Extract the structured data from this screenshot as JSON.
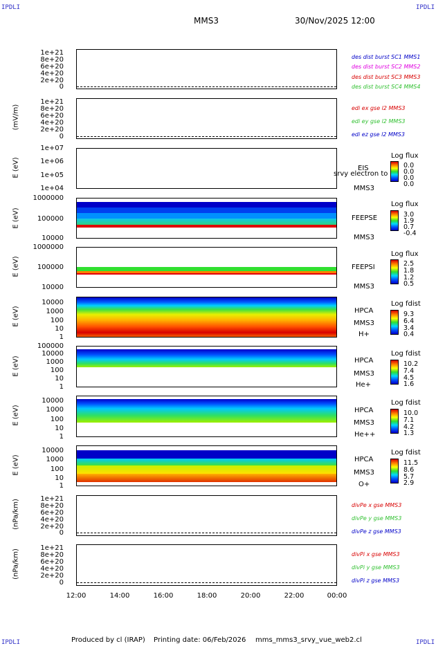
{
  "header": {
    "corner_label": "IPDLI",
    "mission": "MMS3",
    "datetime": "30/Nov/2025 12:00"
  },
  "footer": {
    "produced": "Produced by cl (IRAP)",
    "printing": "Printing date: 06/Feb/2026",
    "file": "mms_mms3_srvy_vue_web2.cl"
  },
  "colors": {
    "dark_blue": "#0000c8",
    "blue": "#0050ff",
    "cyan": "#00d8ff",
    "green": "#30e030",
    "yellow": "#ffff00",
    "orange": "#ff9000",
    "red": "#d80000"
  },
  "chart_data": {
    "type": "multi-panel time series / spectrogram",
    "x_range": [
      "12:00",
      "00:00"
    ],
    "x_ticks": [
      "12:00",
      "14:00",
      "16:00",
      "18:00",
      "20:00",
      "22:00",
      "00:00"
    ],
    "panels": [
      {
        "id": "des",
        "type": "line",
        "ylabel": "",
        "ylim": [
          0,
          1.1e+21
        ],
        "yticks": [
          "1e+21",
          "8e+20",
          "6e+20",
          "4e+20",
          "2e+20",
          "0"
        ],
        "legend": [
          {
            "label": "des dist burst SC1 MMS1",
            "color": "#0000c8"
          },
          {
            "label": "des dist burst SC2 MMS2",
            "color": "#e000e0"
          },
          {
            "label": "des dist burst SC3 MMS3",
            "color": "#d80000"
          },
          {
            "label": "des dist burst SC4 MMS4",
            "color": "#30c030"
          }
        ]
      },
      {
        "id": "edi",
        "type": "line",
        "ylabel": "(mV/m)",
        "ylim": [
          0,
          1.1e+21
        ],
        "yticks": [
          "1e+21",
          "8e+20",
          "6e+20",
          "4e+20",
          "2e+20",
          "0"
        ],
        "legend": [
          {
            "label": "edi ex gse l2 MMS3",
            "color": "#d80000"
          },
          {
            "label": "edi ey gse l2 MMS3",
            "color": "#30c030"
          },
          {
            "label": "edi ez gse l2 MMS3",
            "color": "#0000c8"
          }
        ]
      },
      {
        "id": "eis",
        "type": "heatmap",
        "ylabel": "E (eV)",
        "ylim": [
          10000.0,
          10000000.0
        ],
        "yticks": [
          "1e+07",
          "1e+06",
          "1e+05",
          "1e+04"
        ],
        "side_labels": [
          "EIS",
          "srvy electron to",
          "MMS3"
        ],
        "colorbar": {
          "title": "Log flux",
          "values": [
            "0.0",
            "0.0",
            "0.0",
            "0.0"
          ]
        }
      },
      {
        "id": "feepse",
        "type": "heatmap",
        "ylabel": "E (eV)",
        "ylim": [
          10000.0,
          1000000.0
        ],
        "yticks": [
          "1000000",
          "100000",
          "10000"
        ],
        "side_labels": [
          "FEEPSE",
          "MMS3"
        ],
        "colorbar": {
          "title": "Log flux",
          "values": [
            "3.0",
            "1.9",
            "0.7",
            "-0.4"
          ]
        }
      },
      {
        "id": "feepsi",
        "type": "heatmap",
        "ylabel": "E (eV)",
        "ylim": [
          10000.0,
          1000000.0
        ],
        "yticks": [
          "1000000",
          "100000",
          "10000"
        ],
        "side_labels": [
          "FEEPSI",
          "MMS3"
        ],
        "colorbar": {
          "title": "Log flux",
          "values": [
            "2.5",
            "1.8",
            "1.2",
            "0.5"
          ]
        }
      },
      {
        "id": "hpca_h",
        "type": "heatmap",
        "ylabel": "E (eV)",
        "ylim": [
          1,
          40000.0
        ],
        "yticks": [
          "10000",
          "1000",
          "100",
          "10",
          "1"
        ],
        "side_labels": [
          "HPCA",
          "MMS3",
          "H+"
        ],
        "colorbar": {
          "title": "Log fdist",
          "values": [
            "9.3",
            "6.4",
            "3.4",
            "0.4"
          ]
        }
      },
      {
        "id": "hpca_he",
        "type": "heatmap",
        "ylabel": "E (eV)",
        "ylim": [
          1,
          100000.0
        ],
        "yticks": [
          "100000",
          "10000",
          "1000",
          "100",
          "10",
          "1"
        ],
        "side_labels": [
          "HPCA",
          "MMS3",
          "He+"
        ],
        "colorbar": {
          "title": "Log fdist",
          "values": [
            "10.2",
            "7.4",
            "4.5",
            "1.6"
          ]
        }
      },
      {
        "id": "hpca_hepp",
        "type": "heatmap",
        "ylabel": "E (eV)",
        "ylim": [
          1,
          40000.0
        ],
        "yticks": [
          "10000",
          "1000",
          "100",
          "10",
          "1"
        ],
        "side_labels": [
          "HPCA",
          "MMS3",
          "He++"
        ],
        "colorbar": {
          "title": "Log fdist",
          "values": [
            "10.0",
            "7.1",
            "4.2",
            "1.3"
          ]
        }
      },
      {
        "id": "hpca_o",
        "type": "heatmap",
        "ylabel": "E (eV)",
        "ylim": [
          1,
          40000.0
        ],
        "yticks": [
          "10000",
          "1000",
          "100",
          "10",
          "1"
        ],
        "side_labels": [
          "HPCA",
          "MMS3",
          "O+"
        ],
        "colorbar": {
          "title": "Log fdist",
          "values": [
            "11.5",
            "8.6",
            "5.7",
            "2.9"
          ]
        }
      },
      {
        "id": "divpe",
        "type": "line",
        "ylabel": "(nPa/km)",
        "ylim": [
          0,
          1.1e+21
        ],
        "yticks": [
          "1e+21",
          "8e+20",
          "6e+20",
          "4e+20",
          "2e+20",
          "0"
        ],
        "legend": [
          {
            "label": "divPe x gse MMS3",
            "color": "#d80000"
          },
          {
            "label": "divPe y gse MMS3",
            "color": "#30c030"
          },
          {
            "label": "divPe z gse MMS3",
            "color": "#0000c8"
          }
        ]
      },
      {
        "id": "divpi",
        "type": "line",
        "ylabel": "(nPa/km)",
        "ylim": [
          0,
          1.1e+21
        ],
        "yticks": [
          "1e+21",
          "8e+20",
          "6e+20",
          "4e+20",
          "2e+20",
          "0"
        ],
        "legend": [
          {
            "label": "divPi x gse MMS3",
            "color": "#d80000"
          },
          {
            "label": "divPi y gse MMS3",
            "color": "#30c030"
          },
          {
            "label": "divPi z gse MMS3",
            "color": "#0000c8"
          }
        ]
      }
    ]
  }
}
